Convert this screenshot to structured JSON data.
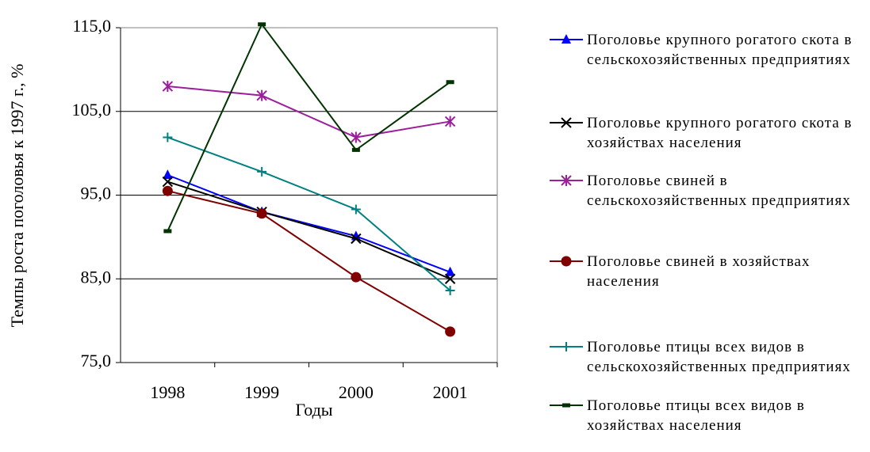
{
  "chart_data": {
    "type": "line",
    "ylabel": "Темпы роста поголовья к 1997 г., %",
    "xlabel": "Годы",
    "categories": [
      "1998",
      "1999",
      "2000",
      "2001"
    ],
    "ylim": [
      75,
      115
    ],
    "yticks": [
      {
        "value": 75,
        "label": "75,0"
      },
      {
        "value": 85,
        "label": "85,0"
      },
      {
        "value": 95,
        "label": "95,0"
      },
      {
        "value": 105,
        "label": "105,0"
      },
      {
        "value": 115,
        "label": "115,0"
      }
    ],
    "grid": true,
    "legend": "right",
    "series": [
      {
        "name": "Поголовье крупного рогатого скота в сельскохозяйственных предприятиях",
        "color": "#0000ff",
        "marker": "triangle",
        "values": [
          97.4,
          93.0,
          90.1,
          85.8
        ]
      },
      {
        "name": "Поголовье крупного рогатого скота в хозяйствах населения",
        "color": "#000000",
        "marker": "x",
        "values": [
          96.6,
          93.0,
          89.8,
          85.0
        ]
      },
      {
        "name": "Поголовье свиней в сельскохозяйственных предприятиях",
        "color": "#9b1f9b",
        "marker": "star",
        "values": [
          108.0,
          106.9,
          101.9,
          103.8
        ]
      },
      {
        "name": "Поголовье свиней в хозяйствах населения",
        "color": "#800000",
        "marker": "circle",
        "values": [
          95.5,
          92.8,
          85.2,
          78.7
        ]
      },
      {
        "name": "Поголовье птицы всех видов в сельскохозяйственных предприятиях",
        "color": "#008080",
        "marker": "plus",
        "values": [
          101.9,
          97.8,
          93.3,
          83.6
        ]
      },
      {
        "name": "Поголовье птицы всех видов в хозяйствах населения",
        "color": "#003300",
        "marker": "dash",
        "values": [
          90.7,
          115.4,
          100.4,
          108.5
        ]
      }
    ]
  }
}
